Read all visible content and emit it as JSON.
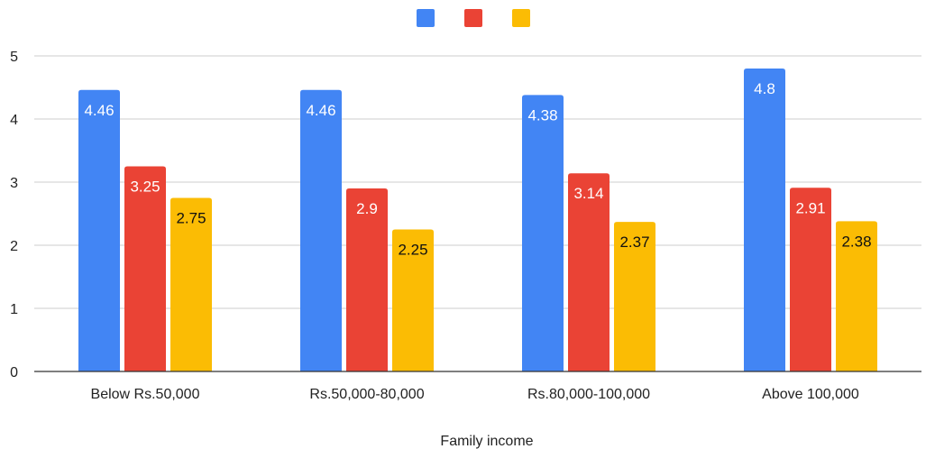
{
  "chart_data": {
    "type": "bar",
    "categories": [
      "Below Rs.50,000",
      "Rs.50,000-80,000",
      "Rs.80,000-100,000",
      "Above 100,000"
    ],
    "series": [
      {
        "values": [
          4.46,
          4.46,
          4.38,
          4.8
        ],
        "color": "#4285F4",
        "label_color": "#ffffff"
      },
      {
        "values": [
          3.25,
          2.9,
          3.14,
          2.91
        ],
        "color": "#EA4335",
        "label_color": "#ffffff"
      },
      {
        "values": [
          2.75,
          2.25,
          2.37,
          2.38
        ],
        "color": "#FBBC04",
        "label_color": "#111111"
      }
    ],
    "xlabel": "Family income",
    "ylabel": "",
    "ylim": [
      0,
      5
    ],
    "yticks": [
      0,
      1,
      2,
      3,
      4,
      5
    ],
    "grid": true,
    "legend_position": "top"
  }
}
